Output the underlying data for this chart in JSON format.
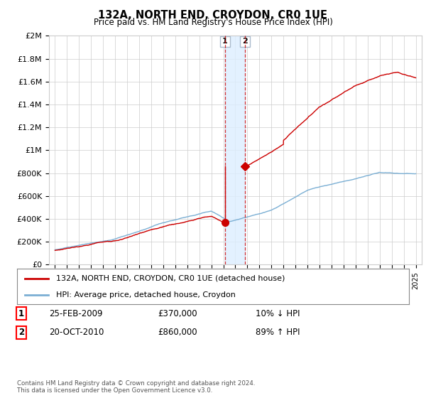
{
  "title": "132A, NORTH END, CROYDON, CR0 1UE",
  "subtitle": "Price paid vs. HM Land Registry's House Price Index (HPI)",
  "ylabel_ticks": [
    0,
    200000,
    400000,
    600000,
    800000,
    1000000,
    1200000,
    1400000,
    1600000,
    1800000,
    2000000
  ],
  "ylabel_labels": [
    "£0",
    "£200K",
    "£400K",
    "£600K",
    "£800K",
    "£1M",
    "£1.2M",
    "£1.4M",
    "£1.6M",
    "£1.8M",
    "£2M"
  ],
  "xlim": [
    1994.5,
    2025.5
  ],
  "ylim": [
    0,
    2000000
  ],
  "sale1_x": 2009.14,
  "sale1_y": 370000,
  "sale1_label": "1",
  "sale2_x": 2010.8,
  "sale2_y": 860000,
  "sale2_label": "2",
  "legend_line1": "132A, NORTH END, CROYDON, CR0 1UE (detached house)",
  "legend_line2": "HPI: Average price, detached house, Croydon",
  "table_row1": [
    "1",
    "25-FEB-2009",
    "£370,000",
    "10% ↓ HPI"
  ],
  "table_row2": [
    "2",
    "20-OCT-2010",
    "£860,000",
    "89% ↑ HPI"
  ],
  "footer": "Contains HM Land Registry data © Crown copyright and database right 2024.\nThis data is licensed under the Open Government Licence v3.0.",
  "red_color": "#cc0000",
  "blue_color": "#7bafd4",
  "shade_color": "#ddeeff",
  "grid_color": "#cccccc"
}
